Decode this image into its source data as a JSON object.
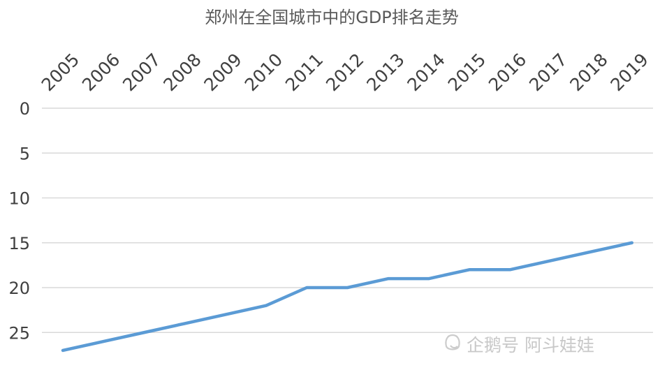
{
  "chart_data": {
    "type": "line",
    "title": "郑州在全国城市中的GDP排名走势",
    "xlabel": "",
    "ylabel": "",
    "categories": [
      "2005",
      "2006",
      "2007",
      "2008",
      "2009",
      "2010",
      "2011",
      "2012",
      "2013",
      "2014",
      "2015",
      "2016",
      "2017",
      "2018",
      "2019"
    ],
    "series": [
      {
        "values": [
          27,
          26,
          25,
          24,
          23,
          22,
          20,
          20,
          19,
          19,
          18,
          18,
          17,
          16,
          15
        ]
      }
    ],
    "ylim": [
      0,
      28
    ],
    "y_ticks": [
      0,
      5,
      10,
      15,
      20,
      25
    ],
    "y_axis_reversed": true,
    "x_axis_position": "top",
    "x_tick_rotation": "-45",
    "grid": true,
    "legend": "none",
    "colors": {
      "series": "#5b9bd5",
      "grid": "#d9d9d9",
      "text": "#404040",
      "title": "#595959"
    }
  },
  "watermark": {
    "text": "企鹅号 阿斗娃娃",
    "icon": "penguin-logo-icon"
  }
}
